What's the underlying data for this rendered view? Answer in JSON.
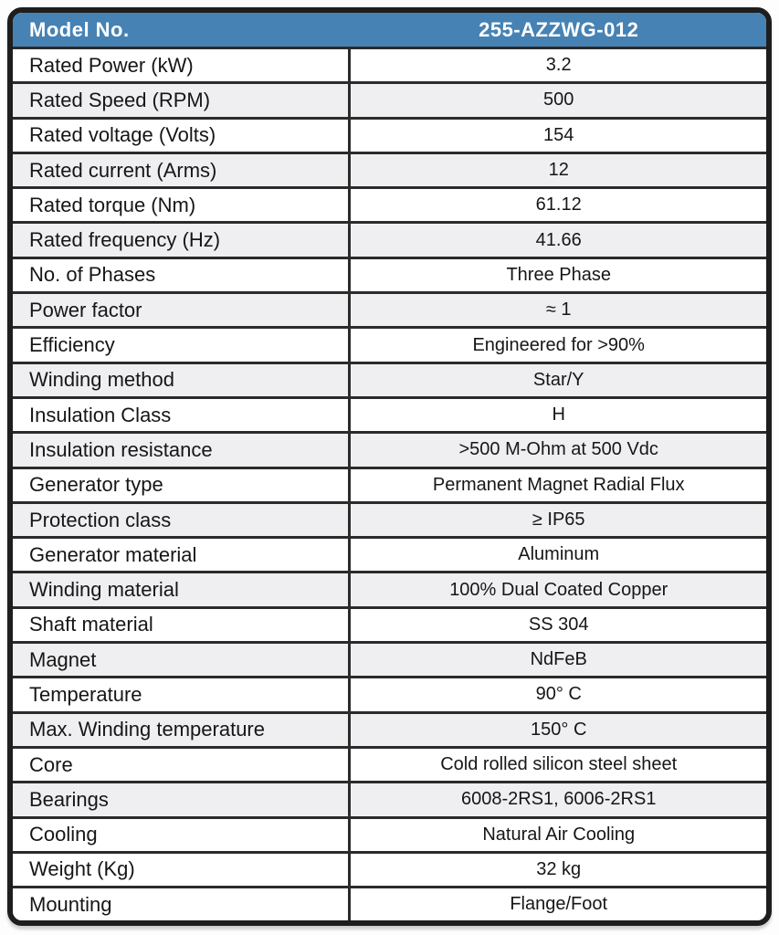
{
  "header": {
    "label": "Model No.",
    "value": "255-AZZWG-012"
  },
  "table": {
    "rows": [
      {
        "label": "Rated Power (kW)",
        "value": "3.2",
        "shaded": false
      },
      {
        "label": "Rated Speed (RPM)",
        "value": "500",
        "shaded": true
      },
      {
        "label": "Rated voltage (Volts)",
        "value": "154",
        "shaded": false
      },
      {
        "label": "Rated current (Arms)",
        "value": "12",
        "shaded": true
      },
      {
        "label": "Rated torque (Nm)",
        "value": "61.12",
        "shaded": false
      },
      {
        "label": "Rated frequency (Hz)",
        "value": "41.66",
        "shaded": true
      },
      {
        "label": "No. of Phases",
        "value": "Three Phase",
        "shaded": false
      },
      {
        "label": "Power factor",
        "value": "≈ 1",
        "shaded": true
      },
      {
        "label": "Efficiency",
        "value": "Engineered for >90%",
        "shaded": false
      },
      {
        "label": "Winding method",
        "value": "Star/Y",
        "shaded": true
      },
      {
        "label": "Insulation Class",
        "value": "H",
        "shaded": false
      },
      {
        "label": "Insulation resistance",
        "value": ">500 M-Ohm at 500 Vdc",
        "shaded": true
      },
      {
        "label": "Generator type",
        "value": "Permanent Magnet Radial Flux",
        "shaded": false
      },
      {
        "label": "Protection class",
        "value": "≥ IP65",
        "shaded": true
      },
      {
        "label": "Generator material",
        "value": "Aluminum",
        "shaded": false
      },
      {
        "label": "Winding material",
        "value": "100% Dual Coated Copper",
        "shaded": true
      },
      {
        "label": "Shaft material",
        "value": "SS 304",
        "shaded": false
      },
      {
        "label": "Magnet",
        "value": "NdFeB",
        "shaded": true
      },
      {
        "label": "Temperature",
        "value": "90° C",
        "shaded": false
      },
      {
        "label": "Max. Winding temperature",
        "value": "150° C",
        "shaded": true
      },
      {
        "label": "Core",
        "value": "Cold rolled silicon steel sheet",
        "shaded": false
      },
      {
        "label": "Bearings",
        "value": "6008-2RS1, 6006-2RS1",
        "shaded": true
      },
      {
        "label": "Cooling",
        "value": "Natural Air Cooling",
        "shaded": false
      },
      {
        "label": "Weight (Kg)",
        "value": "32 kg",
        "shaded": false
      },
      {
        "label": "Mounting",
        "value": "Flange/Foot",
        "shaded": false
      }
    ]
  },
  "colors": {
    "header_bg": "#4682b4",
    "header_text": "#ffffff",
    "row_bg": "#ffffff",
    "row_alt_bg": "#efeff1",
    "border": "#1e1e1e",
    "grid_line": "#2b2b2b",
    "text": "#161616"
  }
}
